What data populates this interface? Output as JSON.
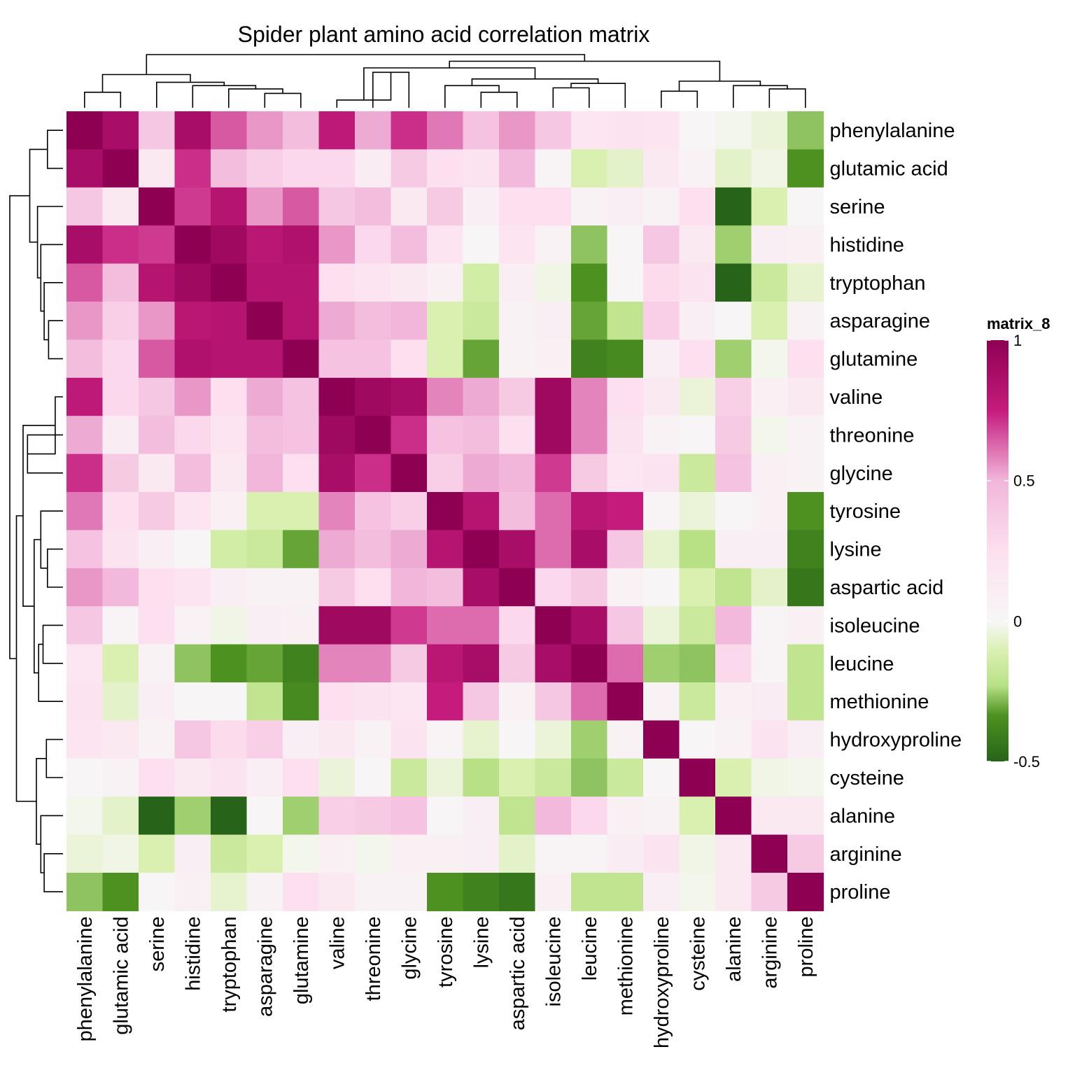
{
  "chart_data": {
    "type": "heatmap",
    "title": "Spider plant amino acid correlation matrix",
    "legend_title": "matrix_8",
    "legend_placement": "right",
    "color_range": [
      -0.5,
      1
    ],
    "legend_ticks": [
      "1",
      "0.5",
      "0",
      "-0.5"
    ],
    "legend_tick_values": [
      1,
      0.5,
      0,
      -0.5
    ],
    "colors": {
      "high": "#8e0152",
      "mid_high": "#c51b7d",
      "mid": "#f7f7f7",
      "mid_low": "#4d9221",
      "low": "#276419"
    },
    "rows": [
      "phenylalanine",
      "glutamic acid",
      "serine",
      "histidine",
      "tryptophan",
      "asparagine",
      "glutamine",
      "valine",
      "threonine",
      "glycine",
      "tyrosine",
      "lysine",
      "aspartic acid",
      "isoleucine",
      "leucine",
      "methionine",
      "hydroxyproline",
      "cysteine",
      "alanine",
      "arginine",
      "proline"
    ],
    "columns": [
      "phenylalanine",
      "glutamic acid",
      "serine",
      "histidine",
      "tryptophan",
      "asparagine",
      "glutamine",
      "valine",
      "threonine",
      "glycine",
      "tyrosine",
      "lysine",
      "aspartic acid",
      "isoleucine",
      "leucine",
      "methionine",
      "hydroxyproline",
      "cysteine",
      "alanine",
      "arginine",
      "proline"
    ],
    "values": [
      [
        1.0,
        0.88,
        0.4,
        0.88,
        0.65,
        0.55,
        0.45,
        0.78,
        0.52,
        0.72,
        0.6,
        0.42,
        0.55,
        0.4,
        0.18,
        0.22,
        0.2,
        0.02,
        -0.02,
        -0.05,
        -0.3
      ],
      [
        0.88,
        1.0,
        0.15,
        0.72,
        0.45,
        0.35,
        0.3,
        0.3,
        0.12,
        0.38,
        0.25,
        0.22,
        0.48,
        0.03,
        -0.12,
        -0.08,
        0.15,
        0.05,
        -0.08,
        -0.03,
        -0.38
      ],
      [
        0.4,
        0.15,
        1.0,
        0.7,
        0.82,
        0.55,
        0.65,
        0.4,
        0.45,
        0.15,
        0.38,
        0.1,
        0.25,
        0.25,
        0.05,
        0.1,
        0.05,
        0.25,
        -0.52,
        -0.12,
        0.02
      ],
      [
        0.88,
        0.72,
        0.7,
        1.0,
        0.92,
        0.8,
        0.85,
        0.55,
        0.3,
        0.45,
        0.2,
        0.02,
        0.2,
        0.05,
        -0.3,
        0.02,
        0.4,
        0.15,
        -0.28,
        0.1,
        0.08
      ],
      [
        0.65,
        0.45,
        0.82,
        0.92,
        1.0,
        0.82,
        0.82,
        0.25,
        0.2,
        0.15,
        0.08,
        -0.15,
        0.1,
        -0.03,
        -0.38,
        0.02,
        0.28,
        0.22,
        -0.55,
        -0.18,
        -0.07
      ],
      [
        0.55,
        0.35,
        0.55,
        0.8,
        0.82,
        1.0,
        0.82,
        0.52,
        0.45,
        0.5,
        -0.12,
        -0.18,
        0.05,
        0.1,
        -0.35,
        -0.22,
        0.35,
        0.1,
        0.02,
        -0.12,
        0.05
      ],
      [
        0.45,
        0.3,
        0.65,
        0.85,
        0.82,
        0.82,
        1.0,
        0.42,
        0.42,
        0.25,
        -0.12,
        -0.35,
        0.05,
        0.08,
        -0.42,
        -0.4,
        0.1,
        0.25,
        -0.28,
        -0.02,
        0.25
      ],
      [
        0.78,
        0.3,
        0.4,
        0.55,
        0.25,
        0.52,
        0.42,
        1.0,
        0.92,
        0.88,
        0.58,
        0.52,
        0.38,
        0.92,
        0.58,
        0.25,
        0.15,
        -0.05,
        0.35,
        0.08,
        0.15
      ],
      [
        0.52,
        0.12,
        0.45,
        0.3,
        0.2,
        0.45,
        0.42,
        0.92,
        1.0,
        0.72,
        0.42,
        0.45,
        0.25,
        0.92,
        0.58,
        0.22,
        0.05,
        0.02,
        0.38,
        -0.02,
        0.05
      ],
      [
        0.72,
        0.38,
        0.15,
        0.45,
        0.15,
        0.5,
        0.25,
        0.88,
        0.72,
        1.0,
        0.35,
        0.52,
        0.5,
        0.7,
        0.38,
        0.18,
        0.22,
        -0.18,
        0.42,
        0.08,
        0.05
      ],
      [
        0.6,
        0.25,
        0.38,
        0.2,
        0.08,
        -0.12,
        -0.12,
        0.58,
        0.42,
        0.35,
        1.0,
        0.82,
        0.45,
        0.62,
        0.8,
        0.75,
        0.03,
        -0.05,
        0.02,
        0.08,
        -0.38
      ],
      [
        0.42,
        0.22,
        0.1,
        0.02,
        -0.15,
        -0.18,
        -0.35,
        0.52,
        0.45,
        0.52,
        0.82,
        1.0,
        0.88,
        0.62,
        0.88,
        0.4,
        -0.07,
        -0.25,
        0.1,
        0.1,
        -0.42
      ],
      [
        0.55,
        0.48,
        0.25,
        0.2,
        0.1,
        0.05,
        0.05,
        0.38,
        0.25,
        0.5,
        0.45,
        0.88,
        1.0,
        0.3,
        0.38,
        0.05,
        0.02,
        -0.12,
        -0.22,
        -0.08,
        -0.45
      ],
      [
        0.4,
        0.03,
        0.25,
        0.05,
        -0.03,
        0.1,
        0.08,
        0.92,
        0.92,
        0.7,
        0.62,
        0.62,
        0.3,
        1.0,
        0.88,
        0.4,
        -0.05,
        -0.18,
        0.48,
        0.03,
        0.08
      ],
      [
        0.18,
        -0.12,
        0.05,
        -0.3,
        -0.38,
        -0.35,
        -0.42,
        0.58,
        0.58,
        0.38,
        0.8,
        0.88,
        0.38,
        0.88,
        1.0,
        0.62,
        -0.28,
        -0.3,
        0.3,
        0.03,
        -0.22
      ],
      [
        0.22,
        -0.08,
        0.1,
        0.02,
        0.02,
        -0.22,
        -0.4,
        0.25,
        0.22,
        0.18,
        0.75,
        0.4,
        0.05,
        0.4,
        0.62,
        1.0,
        0.05,
        -0.18,
        0.08,
        0.12,
        -0.22
      ],
      [
        0.2,
        0.15,
        0.05,
        0.4,
        0.28,
        0.35,
        0.1,
        0.15,
        0.05,
        0.22,
        0.03,
        -0.07,
        0.02,
        -0.05,
        -0.28,
        0.05,
        1.0,
        0.02,
        0.05,
        0.22,
        0.1
      ],
      [
        0.02,
        0.05,
        0.25,
        0.15,
        0.22,
        0.1,
        0.25,
        -0.05,
        0.02,
        -0.18,
        -0.05,
        -0.25,
        -0.12,
        -0.18,
        -0.3,
        -0.18,
        0.02,
        1.0,
        -0.12,
        -0.03,
        -0.02
      ],
      [
        -0.02,
        -0.08,
        -0.52,
        -0.28,
        -0.55,
        0.02,
        -0.28,
        0.35,
        0.38,
        0.42,
        0.02,
        0.1,
        -0.22,
        0.48,
        0.3,
        0.08,
        0.05,
        -0.12,
        1.0,
        0.15,
        0.15
      ],
      [
        -0.05,
        -0.03,
        -0.12,
        0.1,
        -0.18,
        -0.12,
        -0.02,
        0.08,
        -0.02,
        0.08,
        0.08,
        0.1,
        -0.08,
        0.03,
        0.03,
        0.12,
        0.22,
        -0.03,
        0.15,
        1.0,
        0.38
      ],
      [
        -0.3,
        -0.38,
        0.02,
        0.08,
        -0.07,
        0.05,
        0.25,
        0.15,
        0.05,
        0.05,
        -0.38,
        -0.42,
        -0.45,
        0.08,
        -0.22,
        -0.22,
        0.1,
        -0.02,
        0.15,
        0.38,
        1.0
      ]
    ]
  }
}
